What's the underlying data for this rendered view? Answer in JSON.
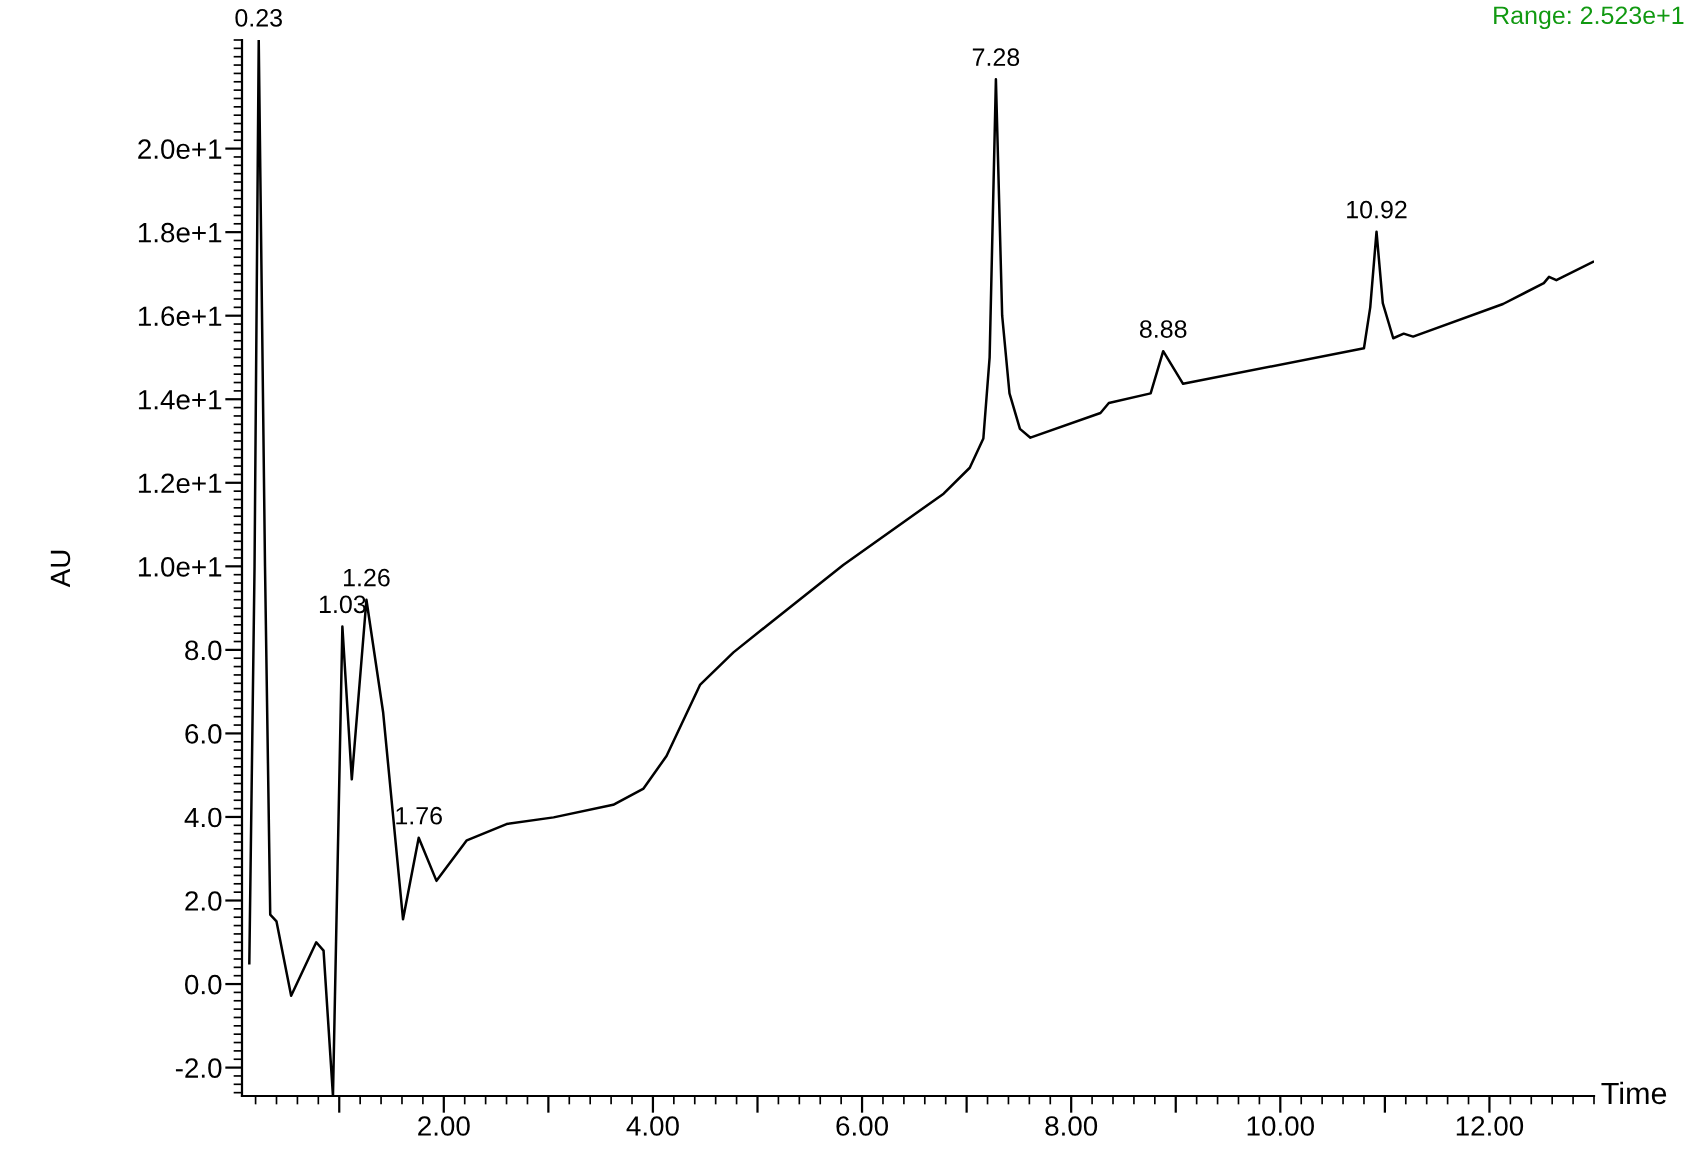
{
  "chart_data": {
    "type": "line",
    "xlabel": "Time",
    "ylabel": "AU",
    "xlim": [
      0.07,
      13.0
    ],
    "ylim": [
      -2.68,
      22.6
    ],
    "xticks": [
      {
        "value": 1,
        "label": null
      },
      "2.00",
      {
        "value": 3,
        "label": null
      },
      {
        "value": 4,
        "label": "4.00"
      },
      {
        "value": 5,
        "label": null
      },
      {
        "value": 6,
        "label": "6.00"
      },
      {
        "value": 7,
        "label": null
      },
      {
        "value": 8,
        "label": "8.00"
      },
      {
        "value": 9,
        "label": null
      },
      {
        "value": 10,
        "label": "10.00"
      },
      {
        "value": 11,
        "label": null
      },
      {
        "value": 12,
        "label": "12.00"
      }
    ],
    "yticks": [
      {
        "value": -2,
        "label": "-2.0"
      },
      {
        "value": 0,
        "label": "0.0"
      },
      {
        "value": 2,
        "label": "2.0"
      },
      {
        "value": 4,
        "label": "4.0"
      },
      {
        "value": 6,
        "label": "6.0"
      },
      {
        "value": 8,
        "label": "8.0"
      },
      {
        "value": 10,
        "label": "1.0e+1"
      },
      {
        "value": 12,
        "label": "1.2e+1"
      },
      {
        "value": 14,
        "label": "1.4e+1"
      },
      {
        "value": 16,
        "label": "1.6e+1"
      },
      {
        "value": 18,
        "label": "1.8e+1"
      },
      {
        "value": 20,
        "label": "2.0e+1"
      }
    ],
    "grid": false,
    "marker": "none",
    "line_style": "solid",
    "series": [
      {
        "color": "#000000",
        "x": [
          0.14,
          0.19,
          0.23,
          0.29,
          0.34,
          0.4,
          0.54,
          0.78,
          0.85,
          0.94,
          1.03,
          1.12,
          1.26,
          1.42,
          1.61,
          1.76,
          1.93,
          2.22,
          2.6,
          3.05,
          3.62,
          3.91,
          4.13,
          4.45,
          4.77,
          5.08,
          5.82,
          6.78,
          7.03,
          7.16,
          7.22,
          7.28,
          7.34,
          7.41,
          7.51,
          7.61,
          8.28,
          8.36,
          8.76,
          8.88,
          9.07,
          10.8,
          10.86,
          10.92,
          10.98,
          11.08,
          11.18,
          11.27,
          12.13,
          12.52,
          12.57,
          12.64,
          12.99
        ],
        "values": [
          0.5,
          10.0,
          22.6,
          10.0,
          1.66,
          1.5,
          -0.28,
          1.0,
          0.8,
          -2.68,
          8.56,
          4.9,
          9.2,
          6.5,
          1.55,
          3.5,
          2.47,
          3.44,
          3.83,
          3.99,
          4.29,
          4.68,
          5.46,
          7.16,
          7.94,
          8.56,
          10.03,
          11.74,
          12.36,
          13.06,
          15.0,
          21.66,
          16.0,
          14.14,
          13.29,
          13.08,
          13.67,
          13.91,
          14.14,
          15.15,
          14.37,
          15.22,
          16.2,
          18.01,
          16.3,
          15.46,
          15.57,
          15.5,
          16.28,
          16.78,
          16.93,
          16.85,
          17.29
        ]
      }
    ],
    "annotations": [
      {
        "text": "0.23",
        "x": 0.23,
        "y": 22.6
      },
      {
        "text": "1.03",
        "x": 1.03,
        "y": 8.56
      },
      {
        "text": "1.26",
        "x": 1.26,
        "y": 9.2
      },
      {
        "text": "1.76",
        "x": 1.76,
        "y": 3.5
      },
      {
        "text": "7.28",
        "x": 7.28,
        "y": 21.66
      },
      {
        "text": "8.88",
        "x": 8.88,
        "y": 15.15
      },
      {
        "text": "10.92",
        "x": 10.92,
        "y": 18.01
      },
      "Range: 2.523e+1"
    ]
  }
}
